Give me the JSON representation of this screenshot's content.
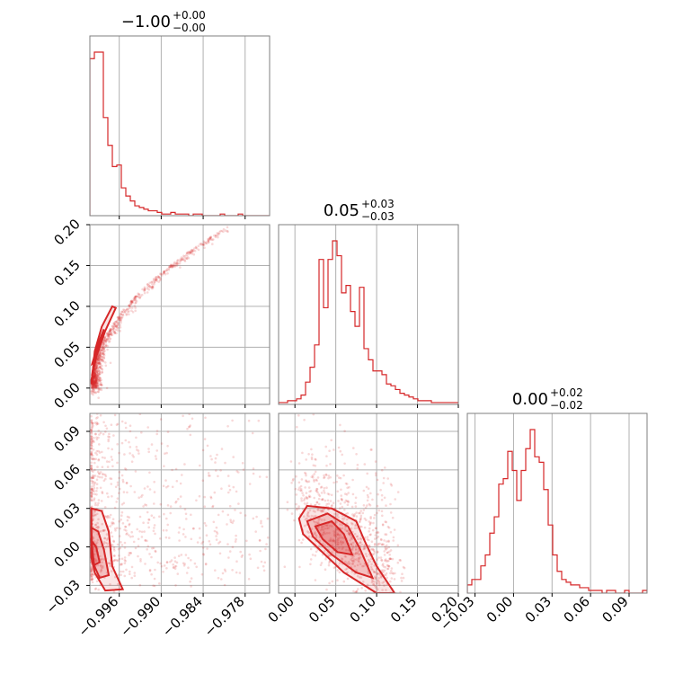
{
  "chart_data": {
    "type": "corner",
    "color": "#d62728",
    "grid": true,
    "parameters": [
      {
        "id": "p0",
        "title": {
          "median": "−1.00",
          "plus": "+0.00",
          "minus": "−0.00"
        },
        "range": [
          -1.0002,
          -0.9745
        ],
        "ticks": [
          -0.996,
          -0.99,
          -0.984,
          -0.978
        ],
        "tick_labels": [
          "−0.996",
          "−0.990",
          "−0.984",
          "−0.978"
        ],
        "hist": [
          96,
          100,
          100,
          60,
          43,
          30,
          31,
          17,
          12,
          9,
          6,
          5,
          4,
          3,
          3,
          2,
          1,
          1,
          2,
          1,
          1,
          1,
          0,
          1,
          1,
          0,
          0,
          0,
          0,
          1,
          0,
          0,
          0,
          1,
          0,
          0,
          0,
          0,
          0,
          0
        ]
      },
      {
        "id": "p1",
        "title": {
          "median": "0.05",
          "plus": "+0.03",
          "minus": "−0.03"
        },
        "range": [
          -0.02,
          0.2
        ],
        "ticks": [
          0.0,
          0.05,
          0.1,
          0.15,
          0.2
        ],
        "tick_labels": [
          "0.00",
          "0.05",
          "0.10",
          "0.15",
          "0.20"
        ],
        "hist": [
          1,
          1,
          2,
          2,
          3,
          5,
          12,
          20,
          32,
          78,
          52,
          78,
          88,
          80,
          60,
          64,
          50,
          42,
          63,
          30,
          24,
          18,
          18,
          16,
          11,
          10,
          8,
          6,
          5,
          4,
          3,
          2,
          2,
          2,
          1,
          1,
          1,
          1,
          1,
          1
        ]
      },
      {
        "id": "p2",
        "title": {
          "median": "0.00",
          "plus": "+0.02",
          "minus": "−0.02"
        },
        "range": [
          -0.036,
          0.104
        ],
        "ticks": [
          -0.03,
          0.0,
          0.03,
          0.06,
          0.09
        ],
        "tick_labels": [
          "−0.03",
          "0.00",
          "0.03",
          "0.06",
          "0.09"
        ],
        "hist": [
          3,
          5,
          5,
          10,
          14,
          22,
          28,
          40,
          42,
          52,
          45,
          34,
          45,
          53,
          60,
          50,
          48,
          38,
          25,
          14,
          8,
          5,
          4,
          3,
          3,
          2,
          2,
          1,
          1,
          1,
          0,
          1,
          1,
          0,
          0,
          1,
          0,
          0,
          0,
          1
        ]
      }
    ],
    "pairs": [
      {
        "x": "p0",
        "y": "p1",
        "row": 1,
        "col": 0
      },
      {
        "x": "p0",
        "y": "p2",
        "row": 2,
        "col": 0
      },
      {
        "x": "p1",
        "y": "p2",
        "row": 2,
        "col": 1
      }
    ]
  }
}
